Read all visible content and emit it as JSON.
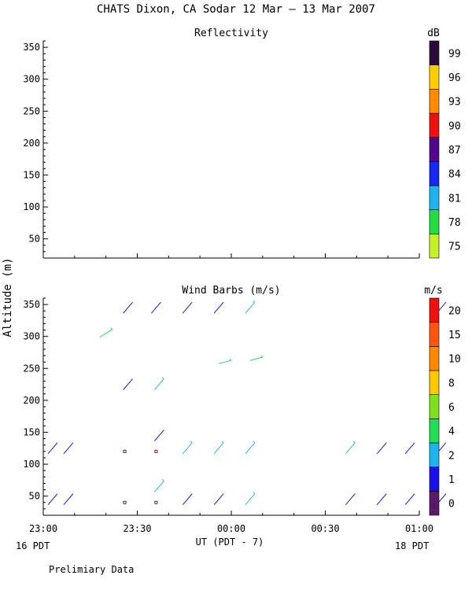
{
  "figure": {
    "title": "CHATS Dixon, CA  Sodar  12 Mar — 13 Mar 2007",
    "shared_ylabel": "Altitude (m)",
    "xlabel": "UT  (PDT - 7)",
    "xdate_left": "16 PDT",
    "xdate_right": "18 PDT",
    "footer_note": "Prelimiary Data"
  },
  "chart_data": [
    {
      "type": "heatmap",
      "title": "Reflectivity",
      "x_ticks": [
        "23:00",
        "23:30",
        "00:00",
        "00:30",
        "01:00"
      ],
      "y_ticks": [
        50,
        100,
        150,
        200,
        250,
        300,
        350
      ],
      "xlim": [
        "23:00",
        "01:00"
      ],
      "ylim": [
        20,
        360
      ],
      "grid": false,
      "values": [],
      "colorbar": {
        "unit": "dB",
        "labels": [
          "75",
          "78",
          "81",
          "84",
          "87",
          "90",
          "93",
          "96",
          "99"
        ],
        "colors": [
          "#c8f028",
          "#22dd44",
          "#1eb4f0",
          "#1428f0",
          "#52088c",
          "#f01010",
          "#ff8c00",
          "#ffcc00",
          "#2a0a3a"
        ]
      }
    },
    {
      "type": "scatter",
      "title": "Wind Barbs (m/s)",
      "x_ticks": [
        "23:00",
        "23:30",
        "00:00",
        "00:30",
        "01:00"
      ],
      "y_ticks": [
        50,
        100,
        150,
        200,
        250,
        300,
        350
      ],
      "xlim": [
        "23:00",
        "01:00"
      ],
      "ylim": [
        20,
        360
      ],
      "grid": false,
      "colorbar": {
        "unit": "m/s",
        "labels": [
          "0",
          "1",
          "2",
          "4",
          "6",
          "8",
          "10",
          "15",
          "20"
        ],
        "colors": [
          "#5a1a6a",
          "#1a10e8",
          "#1eb4f0",
          "#22dd55",
          "#80e020",
          "#ffc800",
          "#ff8800",
          "#ff5510",
          "#f01010"
        ]
      },
      "barbs": [
        {
          "time": "23:03",
          "alt": 45,
          "speed": 1
        },
        {
          "time": "23:03",
          "alt": 125,
          "speed": 1
        },
        {
          "time": "23:08",
          "alt": 45,
          "speed": 1
        },
        {
          "time": "23:08",
          "alt": 125,
          "speed": 1
        },
        {
          "time": "23:20",
          "alt": 305,
          "speed": 4
        },
        {
          "time": "23:27",
          "alt": 345,
          "speed": 1
        },
        {
          "time": "23:27",
          "alt": 225,
          "speed": 1
        },
        {
          "time": "23:26",
          "alt": 120,
          "speed": 0
        },
        {
          "time": "23:26",
          "alt": 40,
          "speed": 0
        },
        {
          "time": "23:36",
          "alt": 345,
          "speed": 1
        },
        {
          "time": "23:37",
          "alt": 225,
          "speed": 2
        },
        {
          "time": "23:37",
          "alt": 145,
          "speed": 1
        },
        {
          "time": "23:36",
          "alt": 120,
          "speed": 0
        },
        {
          "time": "23:37",
          "alt": 65,
          "speed": 2
        },
        {
          "time": "23:36",
          "alt": 40,
          "speed": 0
        },
        {
          "time": "23:46",
          "alt": 345,
          "speed": 1
        },
        {
          "time": "23:46",
          "alt": 125,
          "speed": 2
        },
        {
          "time": "23:46",
          "alt": 45,
          "speed": 1
        },
        {
          "time": "23:56",
          "alt": 345,
          "speed": 1
        },
        {
          "time": "23:58",
          "alt": 260,
          "speed": 2
        },
        {
          "time": "23:56",
          "alt": 125,
          "speed": 2
        },
        {
          "time": "23:56",
          "alt": 45,
          "speed": 1
        },
        {
          "time": "00:06",
          "alt": 345,
          "speed": 2
        },
        {
          "time": "00:08",
          "alt": 265,
          "speed": 4
        },
        {
          "time": "00:06",
          "alt": 125,
          "speed": 2
        },
        {
          "time": "00:06",
          "alt": 45,
          "speed": 2
        },
        {
          "time": "00:38",
          "alt": 125,
          "speed": 2
        },
        {
          "time": "00:38",
          "alt": 45,
          "speed": 1
        },
        {
          "time": "00:48",
          "alt": 125,
          "speed": 1
        },
        {
          "time": "00:48",
          "alt": 45,
          "speed": 1
        },
        {
          "time": "00:57",
          "alt": 125,
          "speed": 1
        },
        {
          "time": "00:57",
          "alt": 45,
          "speed": 1
        },
        {
          "time": "01:07",
          "alt": 345,
          "speed": 1
        },
        {
          "time": "01:07",
          "alt": 125,
          "speed": 1
        },
        {
          "time": "01:07",
          "alt": 45,
          "speed": 1
        }
      ]
    }
  ]
}
